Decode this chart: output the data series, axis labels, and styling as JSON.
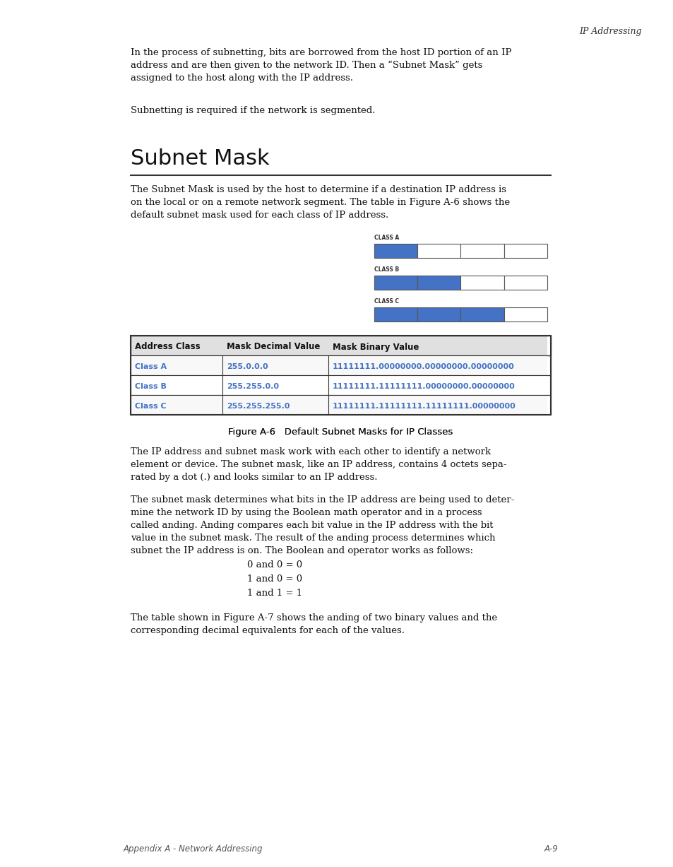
{
  "bg_color": "#ffffff",
  "header_text": "IP Addressing",
  "intro_paragraph": "In the process of subnetting, bits are borrowed from the host ID portion of an IP\naddress and are then given to the network ID. Then a “Subnet Mask” gets\nassigned to the host along with the IP address.",
  "subnetting_line": "Subnetting is required if the network is segmented.",
  "section_title": "Subnet Mask",
  "section_body": "The Subnet Mask is used by the host to determine if a destination IP address is\non the local or on a remote network segment. The table in Figure A-6 shows the\ndefault subnet mask used for each class of IP address.",
  "class_labels": [
    "CLASS A",
    "CLASS B",
    "CLASS C"
  ],
  "blue_color": "#4472C4",
  "table_header": [
    "Address Class",
    "Mask Decimal Value",
    "Mask Binary Value"
  ],
  "table_rows": [
    [
      "Class A",
      "255.0.0.0",
      "11111111.00000000.00000000.00000000"
    ],
    [
      "Class B",
      "255.255.0.0",
      "11111111.11111111.00000000.00000000"
    ],
    [
      "Class C",
      "255.255.255.0",
      "11111111.11111111.11111111.00000000"
    ]
  ],
  "figure_caption": "Figure A-6   Default Subnet Masks for IP Classes",
  "para3": "The IP address and subnet mask work with each other to identify a network\nelement or device. The subnet mask, like an IP address, contains 4 octets sepa-\nrated by a dot (.) and looks similar to an IP address.",
  "para4_parts": [
    "The subnet mask determines what bits in the IP address are being used to deter-\nmine the network ID by using the Boolean math operator ",
    "and",
    " in a process\ncalled ",
    "and",
    "ing. ",
    "And",
    "ing compares each bit value in the IP address with the bit\nvalue in the subnet mask. The result of the ",
    "and",
    "ing process determines which\nsubnet the IP address is on. The Boolean ",
    "and",
    " operator works as follows:"
  ],
  "bool_lines": [
    [
      "0 and 0 = 0",
      false,
      false
    ],
    [
      "1 and 0 = 0",
      false,
      false
    ],
    [
      "1 and 1 = 1",
      false,
      false
    ]
  ],
  "para5_parts": [
    "The table shown in Figure A-7 shows the ",
    "and",
    "ing of two binary values and the\ncorresponding decimal equivalents for each of the values."
  ],
  "footer_left": "Appendix A - Network Addressing",
  "footer_right": "A-9"
}
